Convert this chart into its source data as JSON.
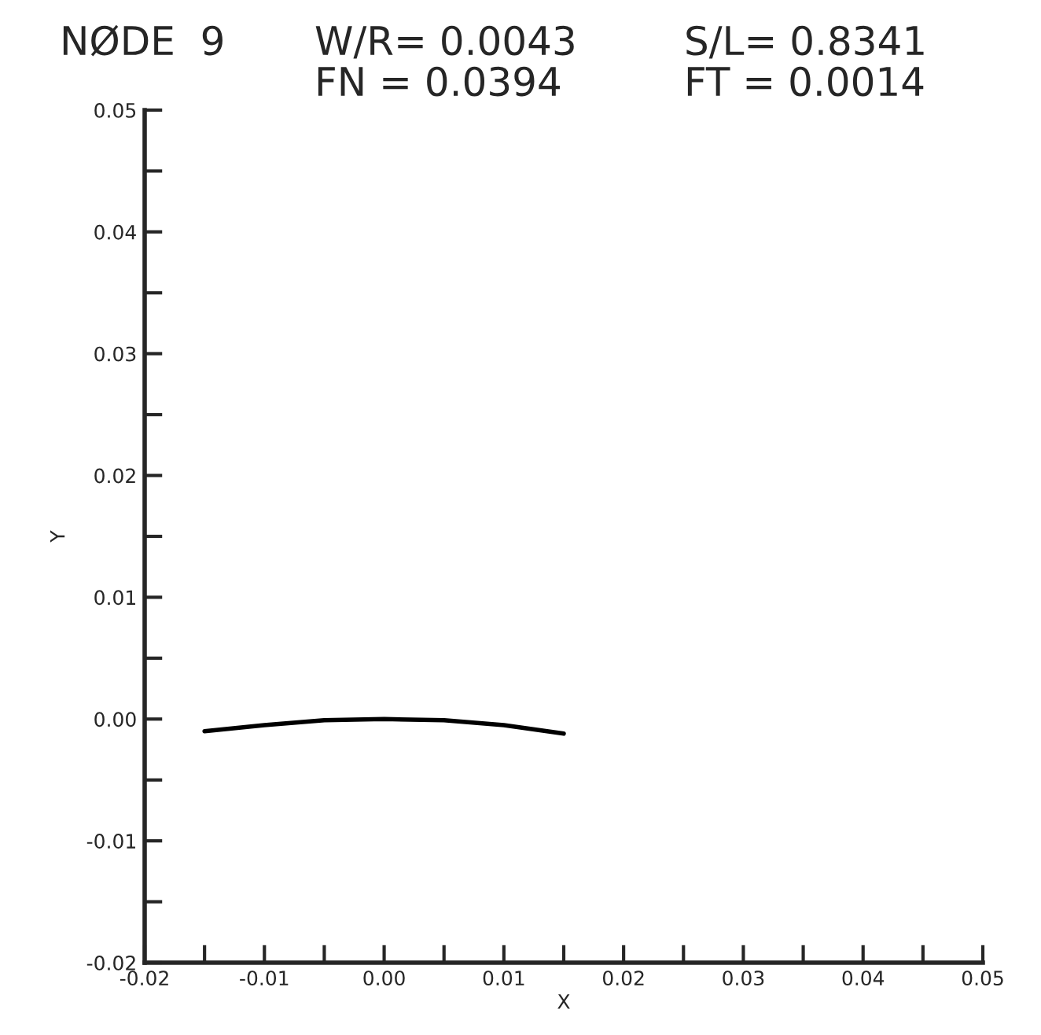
{
  "chart_data": {
    "type": "line",
    "title": "NØDE  9",
    "annotations": [
      "W/R= 0.0043",
      "S/L= 0.8341",
      "FN = 0.0394",
      "FT = 0.0014"
    ],
    "xlabel": "X",
    "ylabel": "Y",
    "x": [
      -0.015,
      -0.01,
      -0.005,
      0.0,
      0.005,
      0.01,
      0.015
    ],
    "series": [
      {
        "color": "#000000",
        "values": [
          -0.001,
          -0.0005,
          -0.0001,
          0.0,
          -0.0001,
          -0.0005,
          -0.0012
        ]
      }
    ],
    "xlim": [
      -0.02,
      0.05
    ],
    "ylim": [
      -0.02,
      0.05
    ],
    "xticks": [
      -0.02,
      {
        "value": -0.015,
        "label": null
      },
      -0.01,
      {
        "value": -0.005,
        "label": null
      },
      {
        "value": 0,
        "label": "0.00"
      },
      {
        "value": 0.005,
        "label": null
      },
      0.01,
      {
        "value": 0.015,
        "label": null
      },
      0.02,
      {
        "value": 0.025,
        "label": null
      },
      0.03,
      {
        "value": 0.035,
        "label": null
      },
      0.04,
      {
        "value": 0.045,
        "label": null
      },
      0.05
    ],
    "yticks": [
      -0.02,
      {
        "value": -0.015,
        "label": null
      },
      -0.01,
      {
        "value": -0.005,
        "label": null
      },
      {
        "value": 0,
        "label": "0.00"
      },
      {
        "value": 0.005,
        "label": null
      },
      0.01,
      {
        "value": 0.015,
        "label": null
      },
      0.02,
      {
        "value": 0.025,
        "label": null
      },
      0.03,
      {
        "value": 0.035,
        "label": null
      },
      0.04,
      {
        "value": 0.045,
        "label": null
      },
      0.05
    ],
    "grid": false,
    "legend": false,
    "marker": "none",
    "line_style": "solid"
  }
}
